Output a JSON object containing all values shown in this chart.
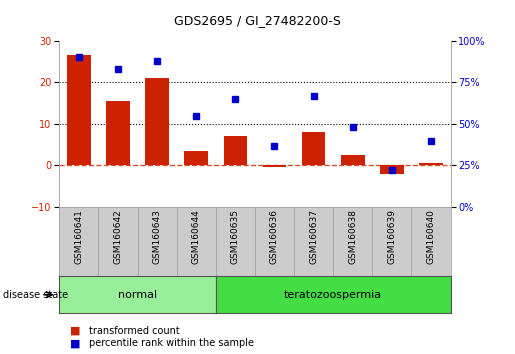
{
  "title": "GDS2695 / GI_27482200-S",
  "samples": [
    "GSM160641",
    "GSM160642",
    "GSM160643",
    "GSM160644",
    "GSM160635",
    "GSM160636",
    "GSM160637",
    "GSM160638",
    "GSM160639",
    "GSM160640"
  ],
  "red_values": [
    26.5,
    15.5,
    21.0,
    3.5,
    7.0,
    -0.3,
    8.0,
    2.5,
    -2.0,
    0.5
  ],
  "blue_values": [
    90,
    83,
    88,
    55,
    65,
    37,
    67,
    48,
    22,
    40
  ],
  "left_ylim": [
    -10,
    30
  ],
  "right_ylim": [
    0,
    100
  ],
  "left_yticks": [
    -10,
    0,
    10,
    20,
    30
  ],
  "right_yticks": [
    0,
    25,
    50,
    75,
    100
  ],
  "right_yticklabels": [
    "0%",
    "25%",
    "50%",
    "75%",
    "100%"
  ],
  "hlines": [
    10,
    20
  ],
  "bar_color": "#cc2200",
  "dot_color": "#0000cc",
  "zero_line_color": "#cc2200",
  "bg_color": "#ffffff",
  "plot_bg": "#ffffff",
  "n_group1": 4,
  "n_group2": 6,
  "group1_label": "normal",
  "group2_label": "teratozoospermia",
  "group1_color": "#99ee99",
  "group2_color": "#44dd44",
  "group_cell_color": "#cccccc",
  "cell_border_color": "#999999",
  "legend_red": "transformed count",
  "legend_blue": "percentile rank within the sample",
  "disease_state_label": "disease state",
  "title_fontsize": 9,
  "tick_fontsize": 7,
  "label_fontsize": 7,
  "sample_fontsize": 6.5
}
